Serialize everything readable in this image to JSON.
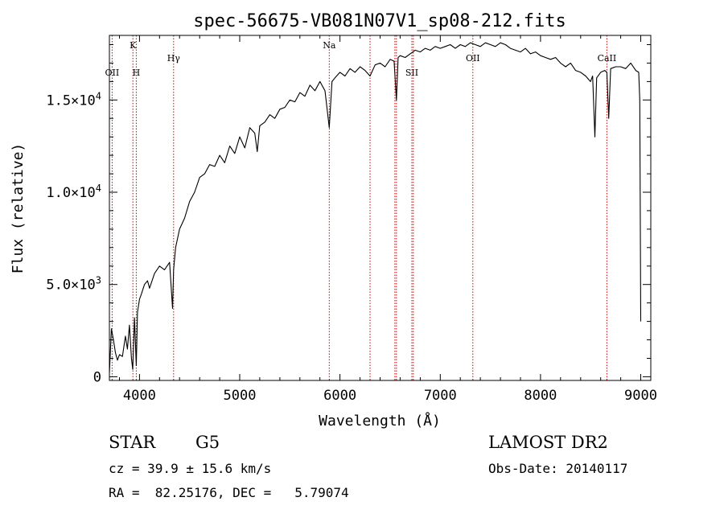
{
  "chart_data": {
    "type": "line",
    "title": "spec-56675-VB081N07V1_sp08-212.fits",
    "xlabel": "Wavelength (Å)",
    "ylabel": "Flux (relative)",
    "xlim": [
      3700,
      9100
    ],
    "ylim": [
      -200,
      18500
    ],
    "x_ticks": [
      4000,
      5000,
      6000,
      7000,
      8000,
      9000
    ],
    "x_tick_labels": [
      "4000",
      "5000",
      "6000",
      "7000",
      "8000",
      "9000"
    ],
    "y_ticks": [
      0,
      5000,
      10000,
      15000
    ],
    "y_tick_labels": [
      {
        "mant": "0",
        "exp": ""
      },
      {
        "mant": "5.0×10",
        "exp": "3"
      },
      {
        "mant": "1.0×10",
        "exp": "4"
      },
      {
        "mant": "1.5×10",
        "exp": "4"
      }
    ],
    "series": [
      {
        "x": [
          3700,
          3720,
          3740,
          3760,
          3780,
          3800,
          3830,
          3860,
          3880,
          3900,
          3920,
          3933,
          3950,
          3968,
          3980,
          4000,
          4020,
          4050,
          4080,
          4100,
          4150,
          4200,
          4250,
          4300,
          4330,
          4340,
          4360,
          4400,
          4450,
          4500,
          4550,
          4600,
          4650,
          4700,
          4750,
          4800,
          4850,
          4900,
          4950,
          5000,
          5050,
          5100,
          5150,
          5175,
          5200,
          5250,
          5300,
          5350,
          5400,
          5450,
          5500,
          5550,
          5600,
          5650,
          5700,
          5750,
          5800,
          5850,
          5893,
          5920,
          5950,
          6000,
          6050,
          6100,
          6150,
          6200,
          6250,
          6300,
          6350,
          6400,
          6450,
          6500,
          6540,
          6563,
          6580,
          6600,
          6650,
          6700,
          6750,
          6800,
          6850,
          6900,
          6950,
          7000,
          7050,
          7100,
          7150,
          7200,
          7250,
          7300,
          7350,
          7400,
          7450,
          7500,
          7550,
          7600,
          7650,
          7700,
          7750,
          7800,
          7850,
          7900,
          7950,
          8000,
          8050,
          8100,
          8150,
          8200,
          8250,
          8300,
          8350,
          8400,
          8450,
          8498,
          8520,
          8542,
          8560,
          8600,
          8640,
          8662,
          8680,
          8700,
          8750,
          8800,
          8850,
          8900,
          8950,
          8980,
          8990,
          9000
        ],
        "y": [
          200,
          2600,
          2000,
          1300,
          900,
          1200,
          1100,
          2200,
          1500,
          2800,
          1000,
          400,
          3200,
          600,
          3500,
          4200,
          4500,
          5000,
          5200,
          4800,
          5600,
          6000,
          5800,
          6200,
          3700,
          5800,
          7000,
          8000,
          8600,
          9500,
          10000,
          10800,
          11000,
          11500,
          11400,
          12000,
          11600,
          12500,
          12100,
          13000,
          12400,
          13500,
          13200,
          12200,
          13600,
          13800,
          14200,
          14000,
          14500,
          14600,
          15000,
          14900,
          15400,
          15200,
          15800,
          15500,
          16000,
          15500,
          13500,
          16000,
          16200,
          16500,
          16300,
          16700,
          16500,
          16800,
          16600,
          16300,
          16900,
          17000,
          16800,
          17200,
          17100,
          15000,
          17300,
          17400,
          17300,
          17500,
          17700,
          17600,
          17800,
          17700,
          17900,
          17800,
          17900,
          18000,
          17800,
          18000,
          17900,
          18100,
          18000,
          17900,
          18100,
          18000,
          17900,
          18100,
          18000,
          17800,
          17700,
          17600,
          17800,
          17500,
          17600,
          17400,
          17300,
          17200,
          17300,
          17000,
          16800,
          17000,
          16600,
          16500,
          16300,
          16000,
          16300,
          13000,
          16200,
          16500,
          16600,
          16500,
          14000,
          16700,
          16800,
          16800,
          16700,
          17000,
          16600,
          16500,
          15000,
          3000
        ]
      }
    ],
    "lines": [
      {
        "label": "OII",
        "x": 3727,
        "row": 2
      },
      {
        "label": "K",
        "x": 3934,
        "row": 0
      },
      {
        "label": "H",
        "x": 3968,
        "row": 2
      },
      {
        "label": "Hγ",
        "x": 4340,
        "row": 1
      },
      {
        "label": "Na",
        "x": 5893,
        "row": 0
      },
      {
        "label": "",
        "x": 6300,
        "row": 0
      },
      {
        "label": "",
        "x": 6548,
        "row": 0
      },
      {
        "label": "",
        "x": 6563,
        "row": 0
      },
      {
        "label": "SII",
        "x": 6717,
        "row": 2
      },
      {
        "label": "",
        "x": 6731,
        "row": 0
      },
      {
        "label": "OII",
        "x": 7325,
        "row": 1
      },
      {
        "label": "CaII",
        "x": 8662,
        "row": 1
      }
    ],
    "grid": false,
    "legend": "none",
    "line_color": "#000000",
    "marker_color": "#cc0000"
  },
  "info": {
    "object_class": "STAR",
    "subclass": "G5",
    "survey": "LAMOST DR2",
    "cz": "cz = 39.9 ± 15.6 km/s",
    "obs_date": "Obs-Date: 20140117",
    "coords": "RA =  82.25176, DEC =   5.79074"
  }
}
